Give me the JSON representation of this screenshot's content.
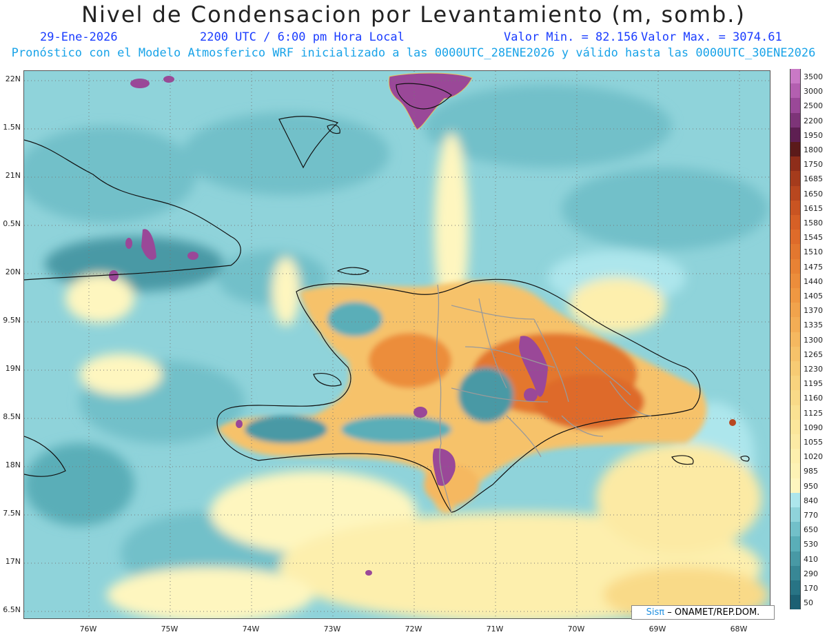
{
  "header": {
    "title": "Nivel de Condensacion por Levantamiento (m, somb.)",
    "date": "29-Ene-2026",
    "time": "2200 UTC / 6:00 pm Hora Local",
    "min_label": "Valor Min. = 82.156",
    "max_label": "Valor Max. = 3074.61",
    "forecast": "Pronóstico con el Modelo Atmosferico WRF inicializado a las 0000UTC_28ENE2026 y válido hasta las  0000UTC_30ENE2026"
  },
  "axes": {
    "lat_labels": [
      "22N",
      "1.5N",
      "21N",
      "0.5N",
      "20N",
      "9.5N",
      "19N",
      "8.5N",
      "18N",
      "7.5N",
      "17N",
      "6.5N"
    ],
    "lon_labels": [
      "76W",
      "75W",
      "74W",
      "73W",
      "72W",
      "71W",
      "70W",
      "69W",
      "68W"
    ]
  },
  "legend": {
    "levels": [
      "3500",
      "3000",
      "2500",
      "2200",
      "1950",
      "1800",
      "1750",
      "1685",
      "1650",
      "1615",
      "1580",
      "1545",
      "1510",
      "1475",
      "1440",
      "1405",
      "1370",
      "1335",
      "1300",
      "1265",
      "1230",
      "1195",
      "1160",
      "1125",
      "1090",
      "1055",
      "1020",
      "985",
      "950",
      "840",
      "770",
      "650",
      "530",
      "410",
      "290",
      "170",
      "50"
    ],
    "colors": [
      "#c979c6",
      "#b35fb0",
      "#9a4898",
      "#7d3478",
      "#5e1f52",
      "#5b1a1a",
      "#8e2d1a",
      "#a53b1c",
      "#b8471f",
      "#c95422",
      "#d66026",
      "#de6b2a",
      "#e3772f",
      "#e88234",
      "#ec8d3b",
      "#ef9842",
      "#f1a34c",
      "#f3ad55",
      "#f5b860",
      "#f6c26a",
      "#f7cb74",
      "#f8d37e",
      "#f9da88",
      "#faE192",
      "#fbe69b",
      "#fceaa4",
      "#fdefad",
      "#fdf2b5",
      "#fef6bf",
      "#ade6ec",
      "#8fd3da",
      "#72c0c9",
      "#5aaeb8",
      "#4899a5",
      "#388795",
      "#287485",
      "#1c6073"
    ]
  },
  "credit": {
    "logo": "Sisπ",
    "text": "– ONAMET/REP.DOM."
  }
}
